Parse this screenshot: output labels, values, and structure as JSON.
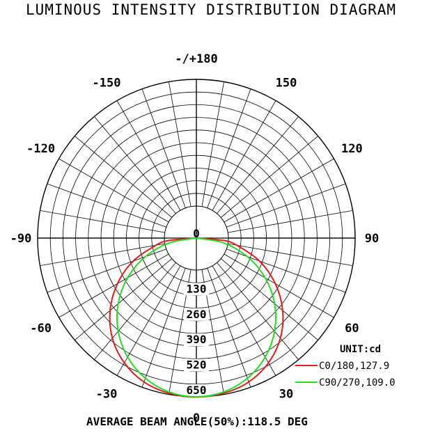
{
  "title": "LUMINOUS INTENSITY DISTRIBUTION DIAGRAM",
  "footer": "AVERAGE BEAM ANGLE(50%):118.5 DEG",
  "chart_data": {
    "type": "polar",
    "unit_label": "UNIT:cd",
    "radial_range": [
      0,
      650
    ],
    "radial_ticks": [
      0,
      130,
      260,
      390,
      520,
      650
    ],
    "angle_labels": [
      {
        "text": "-/+180",
        "angle": 180
      },
      {
        "text": "150",
        "angle": 150
      },
      {
        "text": "-150",
        "angle": -150
      },
      {
        "text": "120",
        "angle": 120
      },
      {
        "text": "-120",
        "angle": -120
      },
      {
        "text": "90",
        "angle": 90
      },
      {
        "text": "-90",
        "angle": -90
      },
      {
        "text": "60",
        "angle": 60
      },
      {
        "text": "-60",
        "angle": -60
      },
      {
        "text": "30",
        "angle": 30
      },
      {
        "text": "-30",
        "angle": -30
      },
      {
        "text": "0",
        "angle": 0
      }
    ],
    "series": [
      {
        "name": "C0/180,127.9",
        "color": "#dd1c1c",
        "angles": [
          0,
          10,
          20,
          30,
          40,
          50,
          60,
          70,
          80,
          85,
          90
        ],
        "values": [
          651,
          645,
          627,
          590,
          535,
          461,
          373,
          275,
          167,
          112,
          0
        ]
      },
      {
        "name": "C90/270,109.0",
        "color": "#22dd22",
        "angles": [
          0,
          10,
          20,
          30,
          40,
          50,
          60,
          70,
          80,
          90
        ],
        "values": [
          650,
          640,
          611,
          563,
          498,
          418,
          325,
          222,
          113,
          0
        ]
      }
    ]
  }
}
